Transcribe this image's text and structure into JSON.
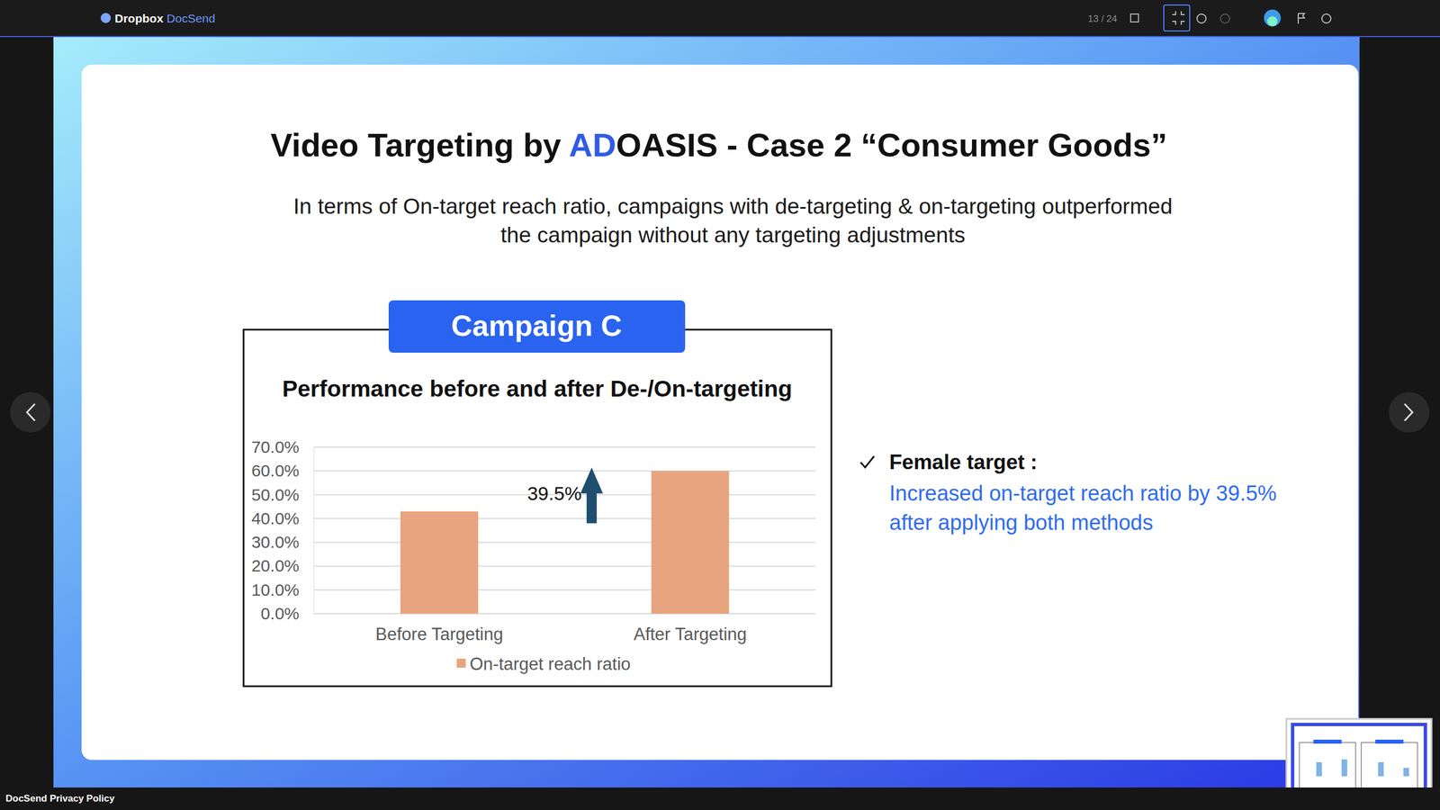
{
  "app": {
    "brand": "Dropbox",
    "product": "DocSend",
    "page_counter": "13 / 24",
    "footer": "DocSend Privacy Policy"
  },
  "slide": {
    "title_parts": [
      "Video Targeting by ",
      "AD",
      "OASIS - Case 2 “Consumer Goods”"
    ],
    "subtitle_lines": [
      "In terms of On-target reach ratio, campaigns with de-targeting & on-targeting outperformed",
      "the campaign without any targeting adjustments"
    ],
    "campaign_label": "Campaign C",
    "bullet": {
      "heading": "Female target :",
      "lines": [
        "Increased on-target reach ratio by 39.5%",
        "after applying both methods"
      ]
    }
  },
  "chart_data": {
    "type": "bar",
    "title": "Performance before and after De-/On-targeting",
    "categories": [
      "Before Targeting",
      "After Targeting"
    ],
    "series": [
      {
        "name": "On-target reach ratio",
        "color": "#e8a47e",
        "values": [
          43.0,
          60.0
        ]
      }
    ],
    "ylim": [
      0,
      70
    ],
    "yticks": [
      {
        "value": 0,
        "label": "0.0%"
      },
      {
        "value": 10,
        "label": "10.0%"
      },
      {
        "value": 20,
        "label": "20.0%"
      },
      {
        "value": 30,
        "label": "30.0%"
      },
      {
        "value": 40,
        "label": "40.0%"
      },
      {
        "value": 50,
        "label": "50.0%"
      },
      {
        "value": 60,
        "label": "60.0%"
      },
      {
        "value": 70,
        "label": "70.0%"
      }
    ],
    "grid": true,
    "legend": "bottom",
    "annotation": "39.5%"
  }
}
